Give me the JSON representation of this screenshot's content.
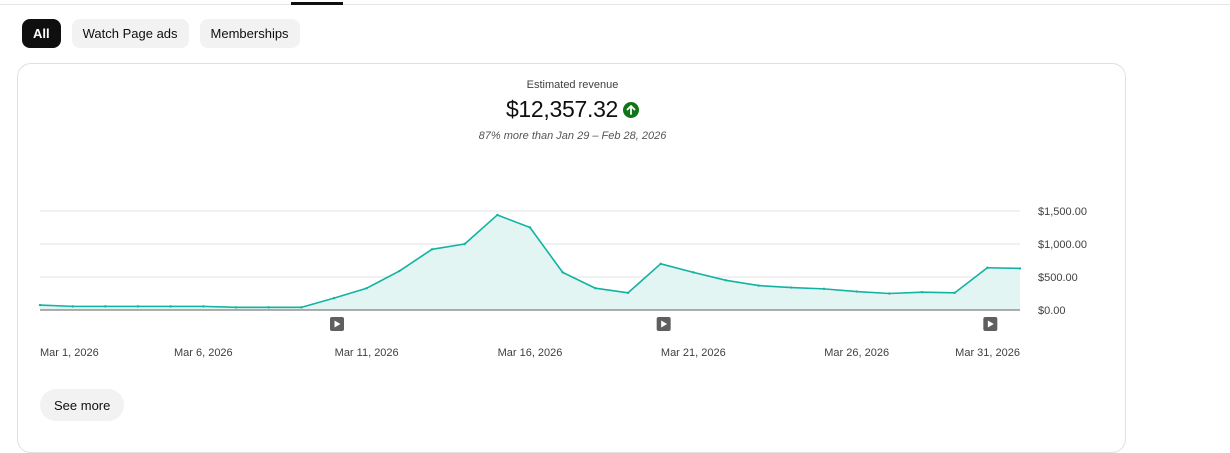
{
  "filters": {
    "chips": [
      {
        "label": "All",
        "active": true
      },
      {
        "label": "Watch Page ads",
        "active": false
      },
      {
        "label": "Memberships",
        "active": false
      }
    ]
  },
  "metric": {
    "label": "Estimated revenue",
    "value": "$12,357.32",
    "trend_icon": "arrow-up-circle-icon",
    "trend_color": "#107516",
    "comparison": "87% more than Jan 29 – Feb 28, 2026"
  },
  "chart_data": {
    "type": "area",
    "title": "",
    "x": [
      "Mar 1, 2026",
      "Mar 2, 2026",
      "Mar 3, 2026",
      "Mar 4, 2026",
      "Mar 5, 2026",
      "Mar 6, 2026",
      "Mar 7, 2026",
      "Mar 8, 2026",
      "Mar 9, 2026",
      "Mar 10, 2026",
      "Mar 11, 2026",
      "Mar 12, 2026",
      "Mar 13, 2026",
      "Mar 14, 2026",
      "Mar 15, 2026",
      "Mar 16, 2026",
      "Mar 17, 2026",
      "Mar 18, 2026",
      "Mar 19, 2026",
      "Mar 20, 2026",
      "Mar 21, 2026",
      "Mar 22, 2026",
      "Mar 23, 2026",
      "Mar 24, 2026",
      "Mar 25, 2026",
      "Mar 26, 2026",
      "Mar 27, 2026",
      "Mar 28, 2026",
      "Mar 29, 2026",
      "Mar 30, 2026",
      "Mar 31, 2026"
    ],
    "series": [
      {
        "values": [
          75,
          55,
          55,
          55,
          55,
          55,
          40,
          40,
          40,
          180,
          330,
          590,
          920,
          1000,
          1440,
          1250,
          570,
          330,
          260,
          700,
          570,
          450,
          370,
          340,
          320,
          280,
          250,
          270,
          260,
          640,
          630
        ]
      }
    ],
    "xtick_labels": [
      "Mar 1, 2026",
      "Mar 6, 2026",
      "Mar 11, 2026",
      "Mar 16, 2026",
      "Mar 21, 2026",
      "Mar 26, 2026",
      "Mar 31, 2026"
    ],
    "ytick_labels": [
      "$0.00",
      "$500.00",
      "$1,000.00",
      "$1,500.00"
    ],
    "yticks": [
      0,
      500,
      1000,
      1500
    ],
    "ylim": [
      0,
      1500
    ],
    "grid": true,
    "line_color": "#12b3a2",
    "fill_color": "#e3f5f3",
    "video_markers": [
      {
        "x": "Mar 10, 2026",
        "icon": "play-icon"
      },
      {
        "x": "Mar 20, 2026",
        "icon": "play-icon"
      },
      {
        "x": "Mar 30, 2026",
        "icon": "play-icon"
      }
    ]
  },
  "actions": {
    "see_more": "See more"
  }
}
